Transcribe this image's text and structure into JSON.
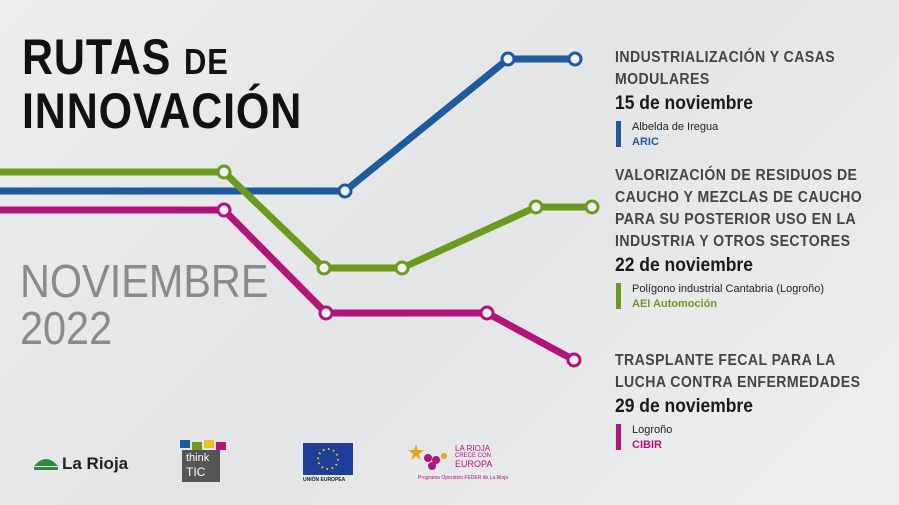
{
  "header": {
    "title_line1": "RUTAS",
    "title_de": "DE",
    "title_line2": "INNOVACIÓN",
    "month": "NOVIEMBRE",
    "year": "2022"
  },
  "events": [
    {
      "title_lines": [
        "INDUSTRIALIZACIÓN Y CASAS",
        "MODULARES"
      ],
      "date": "15 de noviembre",
      "place": "Albelda de Iregua",
      "org": "ARIC"
    },
    {
      "title_lines": [
        "VALORIZACIÓN DE RESIDUOS DE",
        "CAUCHO Y MEZCLAS DE CAUCHO",
        "PARA SU POSTERIOR USO EN LA",
        "INDUSTRIA Y OTROS SECTORES"
      ],
      "date": "22 de noviembre",
      "place": "Polígono industrial Cantabria (Logroño)",
      "org": "AEI Automoción"
    },
    {
      "title_lines": [
        "TRASPLANTE FECAL PARA LA",
        "LUCHA CONTRA ENFERMEDADES"
      ],
      "date": "29 de noviembre",
      "place": "Logroño",
      "org": "CIBIR"
    }
  ],
  "logos": {
    "la_rioja": "La Rioja",
    "think": "think",
    "tic": "TIC",
    "ue": "UNIÓN EUROPEA",
    "crece_1": "LA RIOJA",
    "crece_2": "CRECE CON",
    "crece_3": "EUROPA",
    "feder": "Programa Operativo FEDER de La Rioja"
  }
}
